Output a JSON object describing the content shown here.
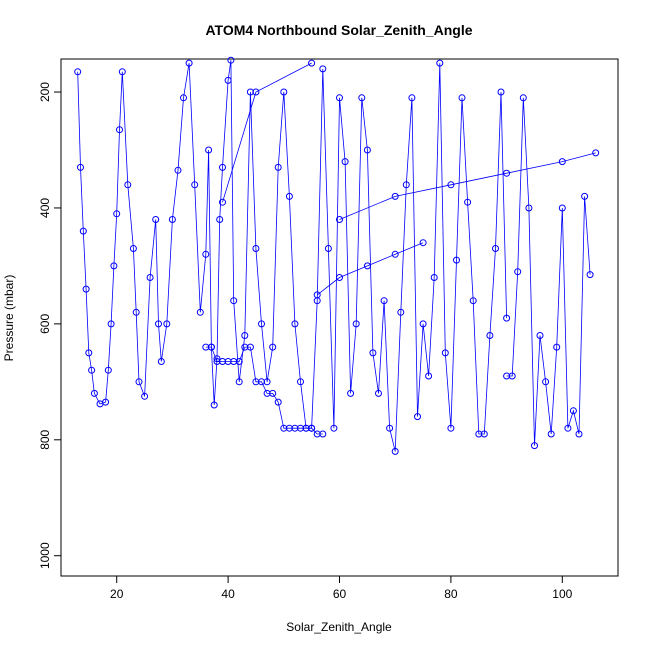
{
  "chart_data": {
    "type": "scatter",
    "title": "ATOM4 Northbound Solar_Zenith_Angle",
    "xlabel": "Solar_Zenith_Angle",
    "ylabel": "Pressure (mbar)",
    "xlim": [
      10,
      110
    ],
    "ylim": [
      1035,
      143
    ],
    "y_reversed": true,
    "x_ticks": [
      20,
      40,
      60,
      80,
      100
    ],
    "y_ticks": [
      200,
      400,
      600,
      800,
      1000
    ],
    "color": "#0000ff",
    "marker": "open-circle",
    "connected": true,
    "series": [
      {
        "x": [
          13,
          13.5,
          14,
          14.5,
          15,
          15.5,
          16,
          17,
          18,
          18.5,
          19,
          19.5,
          20,
          20.5,
          21,
          22,
          23,
          23.5,
          24,
          25,
          26,
          27,
          27.5,
          28,
          29,
          30,
          31,
          32,
          33,
          34,
          35,
          36,
          36.5,
          37,
          37.5,
          38,
          38.5,
          39,
          40,
          40.5,
          41,
          42,
          43,
          44,
          45,
          46,
          47,
          48,
          49,
          50,
          51,
          52,
          53,
          54,
          55
        ],
        "y": [
          165,
          330,
          440,
          540,
          650,
          680,
          720,
          738,
          735,
          680,
          600,
          500,
          410,
          265,
          165,
          360,
          470,
          580,
          700,
          725,
          520,
          420,
          600,
          665,
          600,
          420,
          335,
          210,
          150,
          360,
          580,
          480,
          300,
          640,
          740,
          660,
          420,
          330,
          180,
          145,
          560,
          700,
          620,
          200,
          470,
          600,
          700,
          640,
          330,
          200,
          380,
          600,
          700,
          780,
          780
        ]
      },
      {
        "x": [
          39,
          45,
          55
        ],
        "y": [
          390,
          200,
          150
        ]
      },
      {
        "x": [
          55,
          56,
          57,
          58,
          59,
          60,
          61,
          62,
          63,
          64,
          65,
          66,
          67,
          68,
          69,
          70,
          71,
          72,
          73,
          74,
          75,
          76,
          77,
          78,
          79,
          80,
          81,
          82,
          83,
          84,
          85,
          86,
          87,
          88,
          89,
          90
        ],
        "y": [
          780,
          560,
          160,
          470,
          780,
          210,
          320,
          720,
          600,
          210,
          300,
          650,
          720,
          560,
          780,
          820,
          580,
          360,
          210,
          760,
          600,
          690,
          520,
          150,
          650,
          780,
          490,
          210,
          390,
          560,
          790,
          790,
          620,
          470,
          200,
          590
        ]
      },
      {
        "x": [
          56,
          60,
          65,
          70,
          75
        ],
        "y": [
          550,
          520,
          500,
          480,
          460
        ]
      },
      {
        "x": [
          60,
          70,
          80,
          90,
          100,
          106
        ],
        "y": [
          420,
          380,
          360,
          340,
          320,
          305
        ]
      },
      {
        "x": [
          90,
          91,
          92,
          93,
          94,
          95,
          96,
          97,
          98,
          99,
          100,
          101,
          102,
          103,
          104,
          105
        ],
        "y": [
          690,
          690,
          510,
          210,
          400,
          810,
          620,
          700,
          790,
          640,
          400,
          780,
          750,
          790,
          380,
          515
        ]
      },
      {
        "x": [
          36,
          37,
          38,
          39,
          40,
          41,
          42,
          43,
          44,
          45,
          46,
          47,
          48,
          49,
          50,
          51,
          52,
          53,
          54,
          55,
          56,
          57
        ],
        "y": [
          640,
          640,
          665,
          665,
          665,
          665,
          665,
          640,
          640,
          700,
          700,
          720,
          720,
          735,
          780,
          780,
          780,
          780,
          780,
          780,
          790,
          790
        ]
      }
    ]
  }
}
